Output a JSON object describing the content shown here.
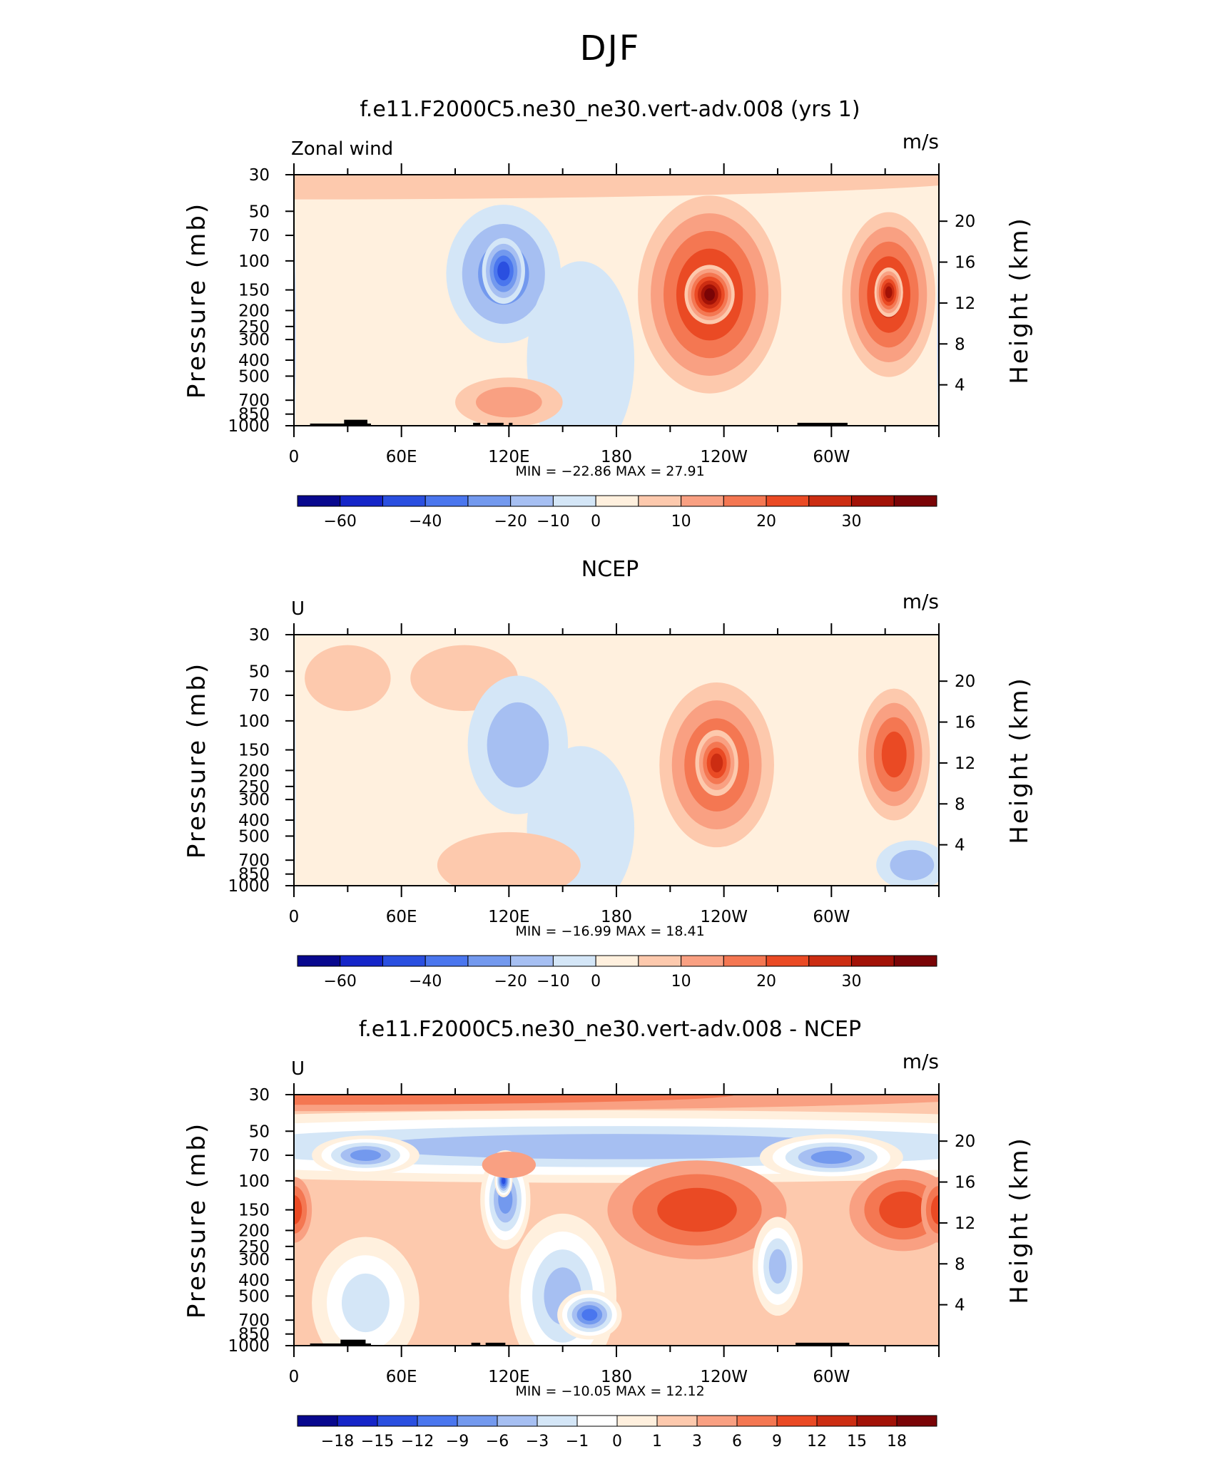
{
  "main_title": "DJF",
  "palettes": {
    "full": [
      "#08088e",
      "#1525c8",
      "#2a4fe0",
      "#4a76ee",
      "#7399ee",
      "#a6bff2",
      "#d4e6f7",
      "#fff0de",
      "#fdc9ad",
      "#f9a082",
      "#f47752",
      "#ea4a24",
      "#cc2d12",
      "#a21207",
      "#7a0406"
    ],
    "diff": [
      "#08088e",
      "#1525c8",
      "#2a4fe0",
      "#4a76ee",
      "#7399ee",
      "#a6bff2",
      "#d4e6f7",
      "#ffffff",
      "#fff0de",
      "#fdc9ad",
      "#f9a082",
      "#f47752",
      "#ea4a24",
      "#cc2d12",
      "#a21207",
      "#7a0406"
    ]
  },
  "chart_data": [
    {
      "type": "heatmap",
      "title": "f.e11.F2000C5.ne30_ne30.vert-adv.008 (yrs 1)",
      "left_label": "Zonal wind",
      "right_label": "m/s",
      "ylabel": "Pressure (mb)",
      "y2label": "Height (km)",
      "x_ticks": [
        "0",
        "60E",
        "120E",
        "180",
        "120W",
        "60W"
      ],
      "y_ticks": [
        "30",
        "50",
        "70",
        "100",
        "150",
        "200",
        "250",
        "300",
        "400",
        "500",
        "700",
        "850",
        "1000"
      ],
      "y2_ticks": [
        "20",
        "16",
        "12",
        "8",
        "4"
      ],
      "stats": "MIN = −22.86   MAX =   27.91",
      "colorbar_labels": [
        "−60",
        "−40",
        "−20",
        "−10",
        "0",
        "10",
        "20",
        "30"
      ],
      "palette": "full",
      "base_level": 7,
      "features": [
        {
          "lon": 0,
          "p": 270,
          "rl": 1,
          "rp": 0.7,
          "level": 5
        },
        {
          "lon": 0,
          "p": 30,
          "rl": 400,
          "rp": 0.15,
          "level": 8
        },
        {
          "lon": 117,
          "p": 120,
          "rl": 32,
          "rp": 0.42,
          "level": 4
        },
        {
          "lon": 117,
          "p": 115,
          "rl": 12,
          "rp": 0.2,
          "level": 2
        },
        {
          "lon": 160,
          "p": 400,
          "rl": 30,
          "rp": 0.6,
          "level": 6
        },
        {
          "lon": 232,
          "p": 160,
          "rl": 40,
          "rp": 0.6,
          "level": 12
        },
        {
          "lon": 232,
          "p": 160,
          "rl": 14,
          "rp": 0.18,
          "level": 14
        },
        {
          "lon": 332,
          "p": 160,
          "rl": 26,
          "rp": 0.5,
          "level": 12
        },
        {
          "lon": 332,
          "p": 155,
          "rl": 8,
          "rp": 0.15,
          "level": 13
        },
        {
          "lon": 120,
          "p": 720,
          "rl": 30,
          "rp": 0.15,
          "level": 9
        }
      ],
      "land": [
        [
          9,
          43,
          970
        ],
        [
          28,
          41,
          920
        ],
        [
          100,
          104,
          960
        ],
        [
          108,
          117,
          960
        ],
        [
          120,
          122,
          960
        ],
        [
          281,
          309,
          960
        ]
      ]
    },
    {
      "type": "heatmap",
      "title": "NCEP",
      "left_label": "U",
      "right_label": "m/s",
      "ylabel": "Pressure (mb)",
      "y2label": "Height (km)",
      "x_ticks": [
        "0",
        "60E",
        "120E",
        "180",
        "120W",
        "60W"
      ],
      "y_ticks": [
        "30",
        "50",
        "70",
        "100",
        "150",
        "200",
        "250",
        "300",
        "400",
        "500",
        "700",
        "850",
        "1000"
      ],
      "y2_ticks": [
        "20",
        "16",
        "12",
        "8",
        "4"
      ],
      "stats": "MIN = −16.99   MAX =   18.41",
      "colorbar_labels": [
        "−60",
        "−40",
        "−20",
        "−10",
        "0",
        "10",
        "20",
        "30"
      ],
      "palette": "full",
      "base_level": 7,
      "features": [
        {
          "lon": 0,
          "p": 250,
          "rl": 1,
          "rp": 0.6,
          "level": 6
        },
        {
          "lon": 30,
          "p": 55,
          "rl": 24,
          "rp": 0.2,
          "level": 8
        },
        {
          "lon": 95,
          "p": 55,
          "rl": 30,
          "rp": 0.2,
          "level": 8
        },
        {
          "lon": 125,
          "p": 140,
          "rl": 28,
          "rp": 0.42,
          "level": 5
        },
        {
          "lon": 160,
          "p": 450,
          "rl": 30,
          "rp": 0.5,
          "level": 6
        },
        {
          "lon": 236,
          "p": 185,
          "rl": 32,
          "rp": 0.5,
          "level": 11
        },
        {
          "lon": 236,
          "p": 180,
          "rl": 12,
          "rp": 0.2,
          "level": 12
        },
        {
          "lon": 335,
          "p": 160,
          "rl": 20,
          "rp": 0.4,
          "level": 11
        },
        {
          "lon": 345,
          "p": 750,
          "rl": 20,
          "rp": 0.15,
          "level": 5
        },
        {
          "lon": 120,
          "p": 750,
          "rl": 40,
          "rp": 0.2,
          "level": 8
        }
      ],
      "land": []
    },
    {
      "type": "heatmap",
      "title": "f.e11.F2000C5.ne30_ne30.vert-adv.008 - NCEP",
      "left_label": "U",
      "right_label": "m/s",
      "ylabel": "Pressure (mb)",
      "y2label": "Height (km)",
      "x_ticks": [
        "0",
        "60E",
        "120E",
        "180",
        "120W",
        "60W"
      ],
      "y_ticks": [
        "30",
        "50",
        "70",
        "100",
        "150",
        "200",
        "250",
        "300",
        "400",
        "500",
        "700",
        "850",
        "1000"
      ],
      "y2_ticks": [
        "20",
        "16",
        "12",
        "8",
        "4"
      ],
      "stats": "MIN = −10.05   MAX =   12.12",
      "colorbar_labels": [
        "−18",
        "−15",
        "−12",
        "−9",
        "−6",
        "−3",
        "−1",
        "0",
        "1",
        "3",
        "6",
        "9",
        "12",
        "15",
        "18"
      ],
      "palette": "diff",
      "base_level": 9,
      "features": [
        {
          "lon": 180,
          "p": 62,
          "rl": 400,
          "rp": 0.22,
          "level": 5
        },
        {
          "lon": 40,
          "p": 70,
          "rl": 30,
          "rp": 0.12,
          "level": 4
        },
        {
          "lon": 300,
          "p": 72,
          "rl": 40,
          "rp": 0.14,
          "level": 4
        },
        {
          "lon": 0,
          "p": 30,
          "rl": 400,
          "rp": 0.1,
          "level": 11
        },
        {
          "lon": 225,
          "p": 150,
          "rl": 50,
          "rp": 0.3,
          "level": 12
        },
        {
          "lon": 340,
          "p": 150,
          "rl": 30,
          "rp": 0.25,
          "level": 12
        },
        {
          "lon": 0,
          "p": 150,
          "rl": 10,
          "rp": 0.2,
          "level": 12
        },
        {
          "lon": 118,
          "p": 130,
          "rl": 14,
          "rp": 0.3,
          "level": 4
        },
        {
          "lon": 117,
          "p": 100,
          "rl": 5,
          "rp": 0.1,
          "level": 2
        },
        {
          "lon": 150,
          "p": 500,
          "rl": 30,
          "rp": 0.5,
          "level": 5
        },
        {
          "lon": 165,
          "p": 650,
          "rl": 18,
          "rp": 0.15,
          "level": 3
        },
        {
          "lon": 270,
          "p": 330,
          "rl": 14,
          "rp": 0.3,
          "level": 5
        },
        {
          "lon": 40,
          "p": 550,
          "rl": 30,
          "rp": 0.4,
          "level": 6
        },
        {
          "lon": 120,
          "p": 80,
          "rl": 15,
          "rp": 0.08,
          "level": 10
        }
      ],
      "land": [
        [
          9,
          43,
          970
        ],
        [
          26,
          40,
          920
        ],
        [
          99,
          104,
          960
        ],
        [
          107,
          118,
          960
        ],
        [
          280,
          310,
          960
        ]
      ]
    }
  ]
}
